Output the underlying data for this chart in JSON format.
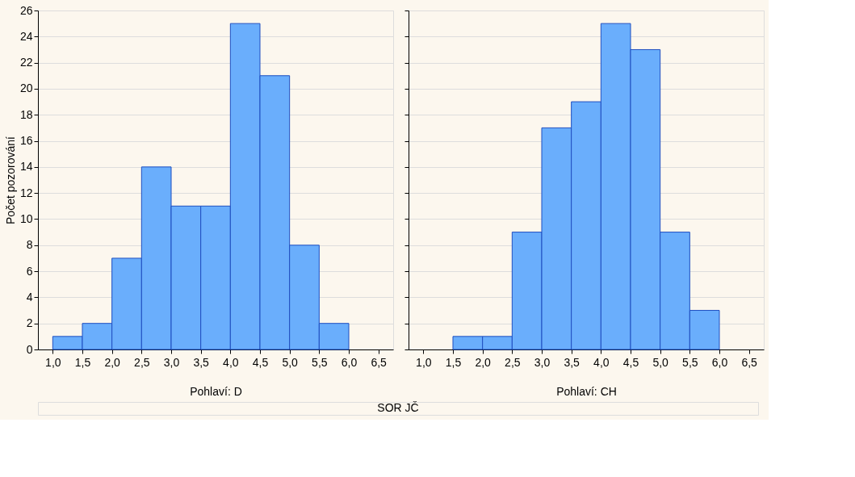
{
  "chart_data": [
    {
      "type": "histogram",
      "xlabel": "Pohlaví: D",
      "ylabel": "Počet pozorování",
      "annotations": [
        "SOR JČ"
      ],
      "bins": [
        1.0,
        1.5,
        2.0,
        2.5,
        3.0,
        3.5,
        4.0,
        4.5,
        5.0,
        5.5,
        6.0,
        6.5
      ],
      "values": [
        1,
        2,
        7,
        14,
        11,
        11,
        25,
        21,
        8,
        2,
        0
      ],
      "color": "#6aaefc",
      "grid": "y",
      "xlim": [
        0.75,
        6.75
      ],
      "ylim": [
        0,
        26
      ],
      "xticks": [
        {
          "value": 1.0,
          "label": "1,0"
        },
        {
          "value": 1.5,
          "label": "1,5"
        },
        {
          "value": 2.0,
          "label": "2,0"
        },
        {
          "value": 2.5,
          "label": "2,5"
        },
        {
          "value": 3.0,
          "label": "3,0"
        },
        {
          "value": 3.5,
          "label": "3,5"
        },
        {
          "value": 4.0,
          "label": "4,0"
        },
        {
          "value": 4.5,
          "label": "4,5"
        },
        {
          "value": 5.0,
          "label": "5,0"
        },
        {
          "value": 5.5,
          "label": "5,5"
        },
        {
          "value": 6.0,
          "label": "6,0"
        },
        {
          "value": 6.5,
          "label": "6,5"
        }
      ],
      "yticks": [
        0,
        2,
        4,
        6,
        8,
        10,
        12,
        14,
        16,
        18,
        20,
        22,
        24,
        26
      ]
    },
    {
      "type": "histogram",
      "xlabel": "Pohlaví: CH",
      "tick_labels": "x",
      "bins": [
        1.0,
        1.5,
        2.0,
        2.5,
        3.0,
        3.5,
        4.0,
        4.5,
        5.0,
        5.5,
        6.0,
        6.5
      ],
      "values": [
        0,
        1,
        1,
        9,
        17,
        19,
        25,
        23,
        9,
        3,
        0
      ],
      "color": "#6aaefc",
      "grid": "y",
      "xlim": [
        0.75,
        6.75
      ],
      "ylim": [
        0,
        26
      ],
      "xticks": [
        {
          "value": 1.0,
          "label": "1,0"
        },
        {
          "value": 1.5,
          "label": "1,5"
        },
        {
          "value": 2.0,
          "label": "2,0"
        },
        {
          "value": 2.5,
          "label": "2,5"
        },
        {
          "value": 3.0,
          "label": "3,0"
        },
        {
          "value": 3.5,
          "label": "3,5"
        },
        {
          "value": 4.0,
          "label": "4,0"
        },
        {
          "value": 4.5,
          "label": "4,5"
        },
        {
          "value": 5.0,
          "label": "5,0"
        },
        {
          "value": 5.5,
          "label": "5,5"
        },
        {
          "value": 6.0,
          "label": "6,0"
        },
        {
          "value": 6.5,
          "label": "6,5"
        }
      ],
      "yticks": [
        0,
        2,
        4,
        6,
        8,
        10,
        12,
        14,
        16,
        18,
        20,
        22,
        24,
        26
      ]
    }
  ]
}
